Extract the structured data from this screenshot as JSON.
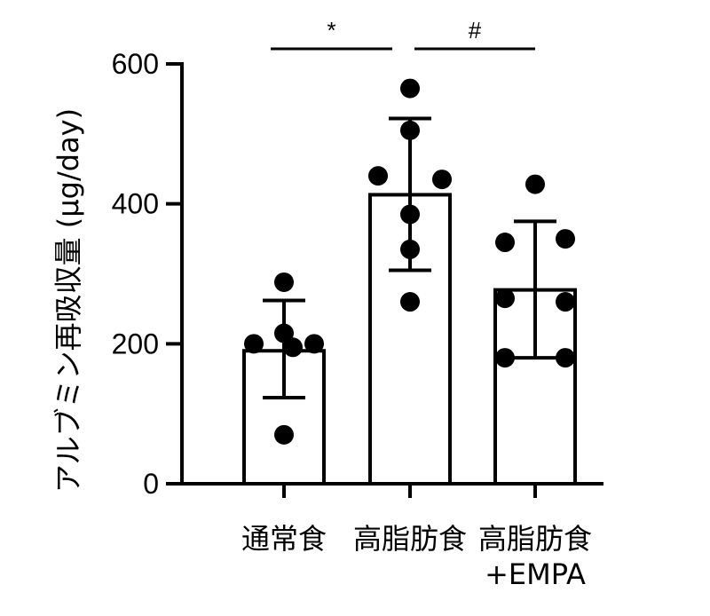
{
  "chart_data": {
    "type": "bar",
    "ylabel": "アルブミン再吸収量 (μg/day)",
    "ylim": [
      0,
      600
    ],
    "yticks": [
      0,
      200,
      400,
      600
    ],
    "categories": [
      "通常食",
      "高脂肪食",
      "高脂肪食\n+EMPA"
    ],
    "values": [
      190,
      413,
      277
    ],
    "error": [
      [
        123,
        262
      ],
      [
        305,
        522
      ],
      [
        180,
        375
      ]
    ],
    "points": [
      [
        288,
        200,
        200,
        215,
        195,
        70
      ],
      [
        565,
        505,
        440,
        435,
        385,
        335,
        260
      ],
      [
        428,
        345,
        350,
        265,
        260,
        180,
        180
      ]
    ],
    "significance": [
      {
        "from": 0,
        "to": 1,
        "label": "*"
      },
      {
        "from": 1,
        "to": 2,
        "label": "#"
      }
    ],
    "grid": false,
    "bar_color": "#ffffff",
    "edge_color": "#000000"
  }
}
